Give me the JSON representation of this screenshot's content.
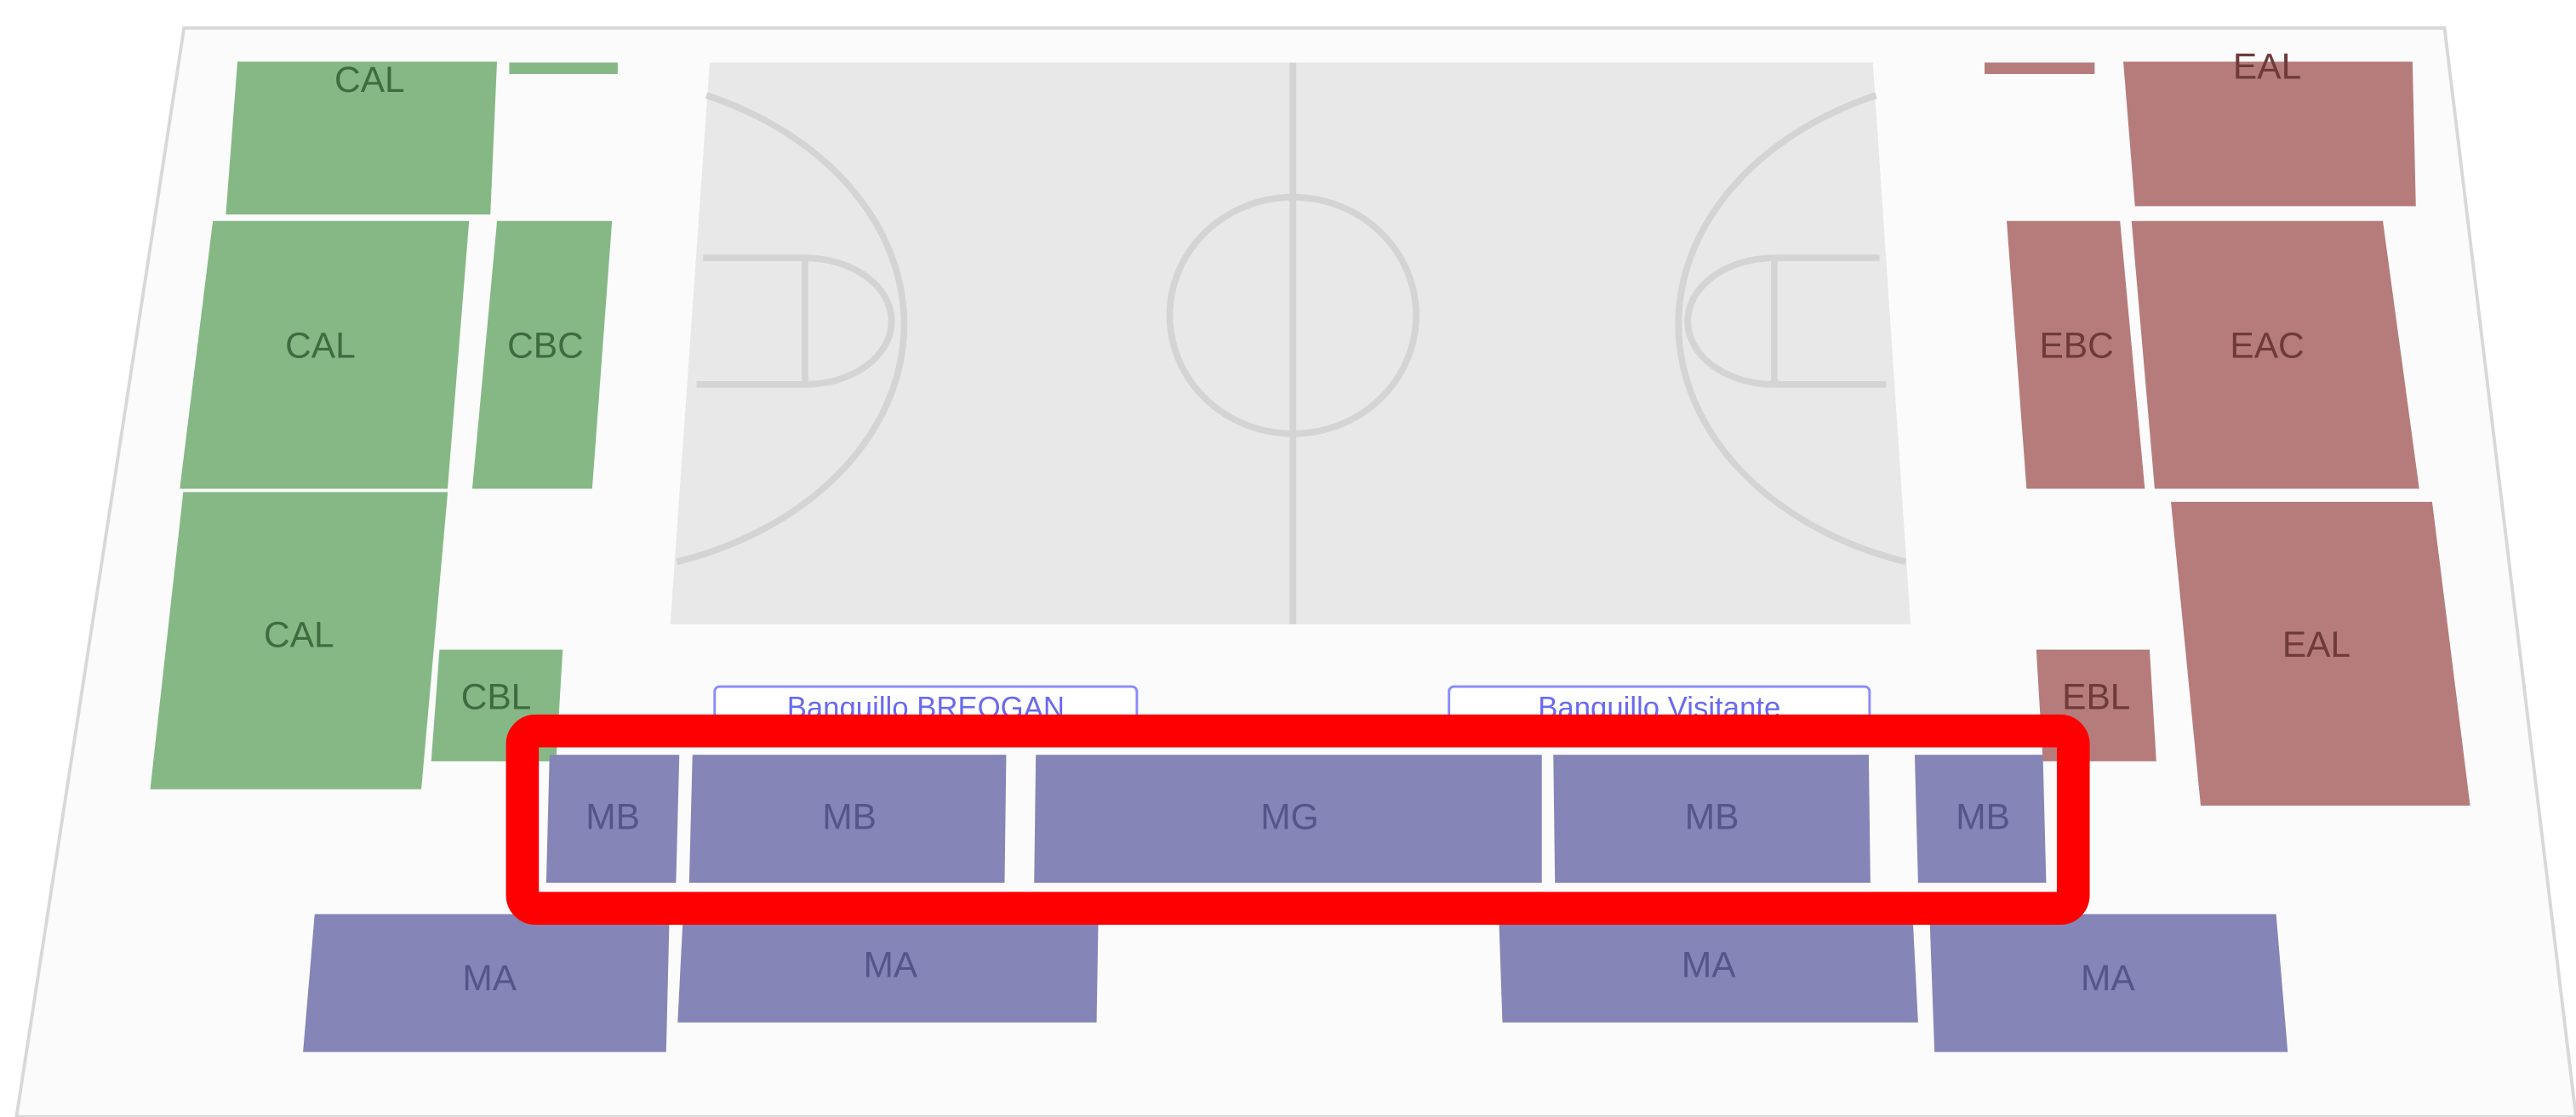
{
  "sections": [
    {
      "label": "CAL"
    },
    {
      "label": "CAL"
    },
    {
      "label": "CBC"
    },
    {
      "label": "CAL"
    },
    {
      "label": "CBL"
    },
    {
      "label": "EAL"
    },
    {
      "label": "EBC"
    },
    {
      "label": "EAC"
    },
    {
      "label": "EBL"
    },
    {
      "label": "EAL"
    },
    {
      "label": "MB"
    },
    {
      "label": "MB"
    },
    {
      "label": "MG"
    },
    {
      "label": "MB"
    },
    {
      "label": "MB"
    },
    {
      "label": "MA"
    },
    {
      "label": "MA"
    },
    {
      "label": "MA"
    },
    {
      "label": "MA"
    }
  ],
  "benches": [
    {
      "label": "Banquillo BREOGAN"
    },
    {
      "label": "Banquillo Visitante"
    }
  ]
}
